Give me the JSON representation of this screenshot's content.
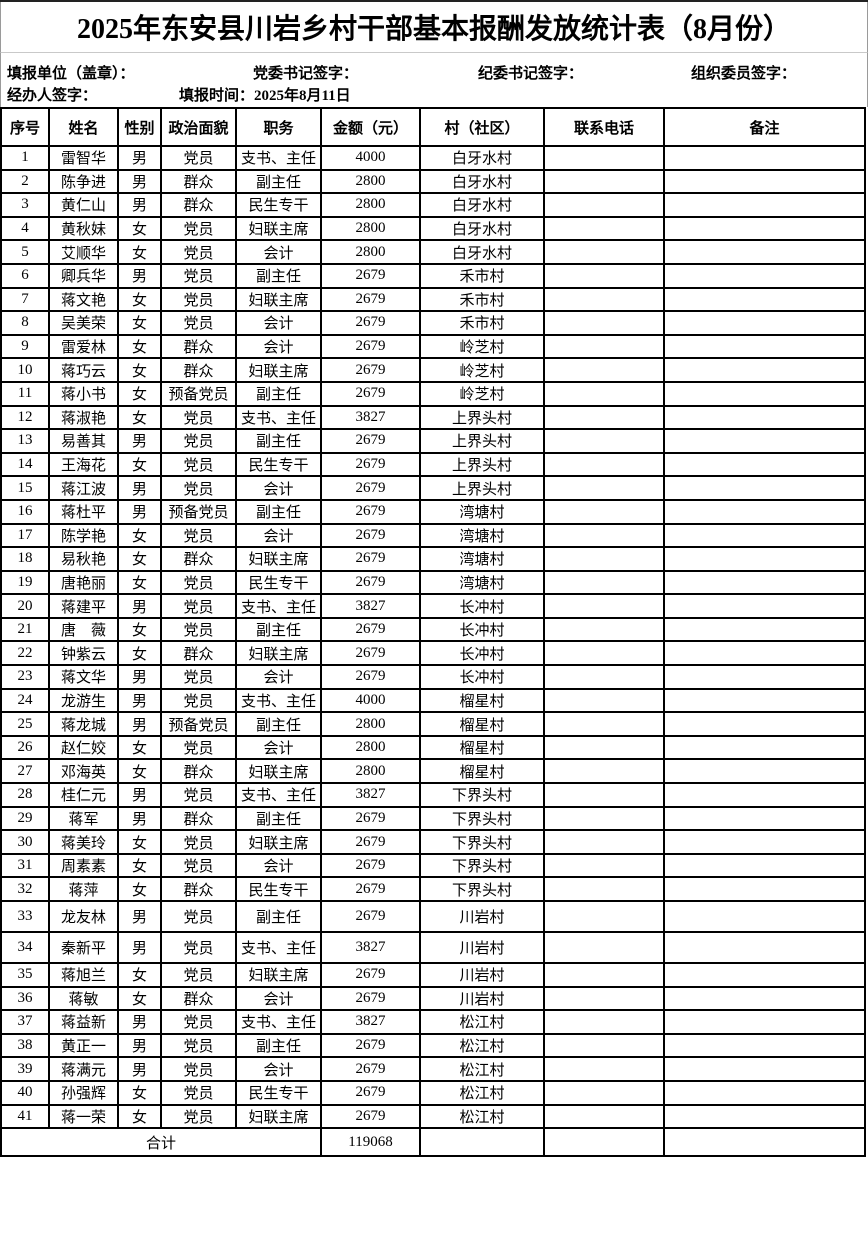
{
  "title": "2025年东安县川岩乡村干部基本报酬发放统计表（8月份）",
  "form_info": {
    "reporting_unit": "填报单位（盖章）：",
    "party_secretary_sign": "党委书记签字：",
    "discipline_secretary_sign": "纪委书记签字：",
    "organization_member_sign": "组织委员签字：",
    "handler_sign": "经办人签字：",
    "report_time": "填报时间：2025年8月11日"
  },
  "table": {
    "columns": [
      "序号",
      "姓名",
      "性别",
      "政治面貌",
      "职务",
      "金额（元）",
      "村（社区）",
      "联系电话",
      "备注"
    ],
    "rows": [
      [
        "1",
        "雷智华",
        "男",
        "党员",
        "支书、主任",
        "4000",
        "白牙水村",
        "",
        ""
      ],
      [
        "2",
        "陈争进",
        "男",
        "群众",
        "副主任",
        "2800",
        "白牙水村",
        "",
        ""
      ],
      [
        "3",
        "黄仁山",
        "男",
        "群众",
        "民生专干",
        "2800",
        "白牙水村",
        "",
        ""
      ],
      [
        "4",
        "黄秋妹",
        "女",
        "党员",
        "妇联主席",
        "2800",
        "白牙水村",
        "",
        ""
      ],
      [
        "5",
        "艾顺华",
        "女",
        "党员",
        "会计",
        "2800",
        "白牙水村",
        "",
        ""
      ],
      [
        "6",
        "卿兵华",
        "男",
        "党员",
        "副主任",
        "2679",
        "禾市村",
        "",
        ""
      ],
      [
        "7",
        "蒋文艳",
        "女",
        "党员",
        "妇联主席",
        "2679",
        "禾市村",
        "",
        ""
      ],
      [
        "8",
        "吴美荣",
        "女",
        "党员",
        "会计",
        "2679",
        "禾市村",
        "",
        ""
      ],
      [
        "9",
        "雷爱林",
        "女",
        "群众",
        "会计",
        "2679",
        "岭芝村",
        "",
        ""
      ],
      [
        "10",
        "蒋巧云",
        "女",
        "群众",
        "妇联主席",
        "2679",
        "岭芝村",
        "",
        ""
      ],
      [
        "11",
        "蒋小书",
        "女",
        "预备党员",
        "副主任",
        "2679",
        "岭芝村",
        "",
        ""
      ],
      [
        "12",
        "蒋淑艳",
        "女",
        "党员",
        "支书、主任",
        "3827",
        "上界头村",
        "",
        ""
      ],
      [
        "13",
        "易善其",
        "男",
        "党员",
        "副主任",
        "2679",
        "上界头村",
        "",
        ""
      ],
      [
        "14",
        "王海花",
        "女",
        "党员",
        "民生专干",
        "2679",
        "上界头村",
        "",
        ""
      ],
      [
        "15",
        "蒋江波",
        "男",
        "党员",
        "会计",
        "2679",
        "上界头村",
        "",
        ""
      ],
      [
        "16",
        "蒋杜平",
        "男",
        "预备党员",
        "副主任",
        "2679",
        "湾塘村",
        "",
        ""
      ],
      [
        "17",
        "陈学艳",
        "女",
        "党员",
        "会计",
        "2679",
        "湾塘村",
        "",
        ""
      ],
      [
        "18",
        "易秋艳",
        "女",
        "群众",
        "妇联主席",
        "2679",
        "湾塘村",
        "",
        ""
      ],
      [
        "19",
        "唐艳丽",
        "女",
        "党员",
        "民生专干",
        "2679",
        "湾塘村",
        "",
        ""
      ],
      [
        "20",
        "蒋建平",
        "男",
        "党员",
        "支书、主任",
        "3827",
        "长冲村",
        "",
        ""
      ],
      [
        "21",
        "唐　薇",
        "女",
        "党员",
        "副主任",
        "2679",
        "长冲村",
        "",
        ""
      ],
      [
        "22",
        "钟紫云",
        "女",
        "群众",
        "妇联主席",
        "2679",
        "长冲村",
        "",
        ""
      ],
      [
        "23",
        "蒋文华",
        "男",
        "党员",
        "会计",
        "2679",
        "长冲村",
        "",
        ""
      ],
      [
        "24",
        "龙游生",
        "男",
        "党员",
        "支书、主任",
        "4000",
        "榴星村",
        "",
        ""
      ],
      [
        "25",
        "蒋龙城",
        "男",
        "预备党员",
        "副主任",
        "2800",
        "榴星村",
        "",
        ""
      ],
      [
        "26",
        "赵仁姣",
        "女",
        "党员",
        "会计",
        "2800",
        "榴星村",
        "",
        ""
      ],
      [
        "27",
        "邓海英",
        "女",
        "群众",
        "妇联主席",
        "2800",
        "榴星村",
        "",
        ""
      ],
      [
        "28",
        "桂仁元",
        "男",
        "党员",
        "支书、主任",
        "3827",
        "下界头村",
        "",
        ""
      ],
      [
        "29",
        "蒋军",
        "男",
        "群众",
        "副主任",
        "2679",
        "下界头村",
        "",
        ""
      ],
      [
        "30",
        "蒋美玲",
        "女",
        "党员",
        "妇联主席",
        "2679",
        "下界头村",
        "",
        ""
      ],
      [
        "31",
        "周素素",
        "女",
        "党员",
        "会计",
        "2679",
        "下界头村",
        "",
        ""
      ],
      [
        "32",
        "蒋萍",
        "女",
        "群众",
        "民生专干",
        "2679",
        "下界头村",
        "",
        ""
      ],
      [
        "33",
        "龙友林",
        "男",
        "党员",
        "副主任",
        "2679",
        "川岩村",
        "",
        ""
      ],
      [
        "34",
        "秦新平",
        "男",
        "党员",
        "支书、主任",
        "3827",
        "川岩村",
        "",
        ""
      ],
      [
        "35",
        "蒋旭兰",
        "女",
        "党员",
        "妇联主席",
        "2679",
        "川岩村",
        "",
        ""
      ],
      [
        "36",
        "蒋敏",
        "女",
        "群众",
        "会计",
        "2679",
        "川岩村",
        "",
        ""
      ],
      [
        "37",
        "蒋益新",
        "男",
        "党员",
        "支书、主任",
        "3827",
        "松江村",
        "",
        ""
      ],
      [
        "38",
        "黄正一",
        "男",
        "党员",
        "副主任",
        "2679",
        "松江村",
        "",
        ""
      ],
      [
        "39",
        "蒋满元",
        "男",
        "党员",
        "会计",
        "2679",
        "松江村",
        "",
        ""
      ],
      [
        "40",
        "孙强辉",
        "女",
        "党员",
        "民生专干",
        "2679",
        "松江村",
        "",
        ""
      ],
      [
        "41",
        "蒋一荣",
        "女",
        "党员",
        "妇联主席",
        "2679",
        "松江村",
        "",
        ""
      ]
    ],
    "tall_serials": [
      "33",
      "34"
    ],
    "total_label": "合计",
    "total_amount": "119068"
  }
}
